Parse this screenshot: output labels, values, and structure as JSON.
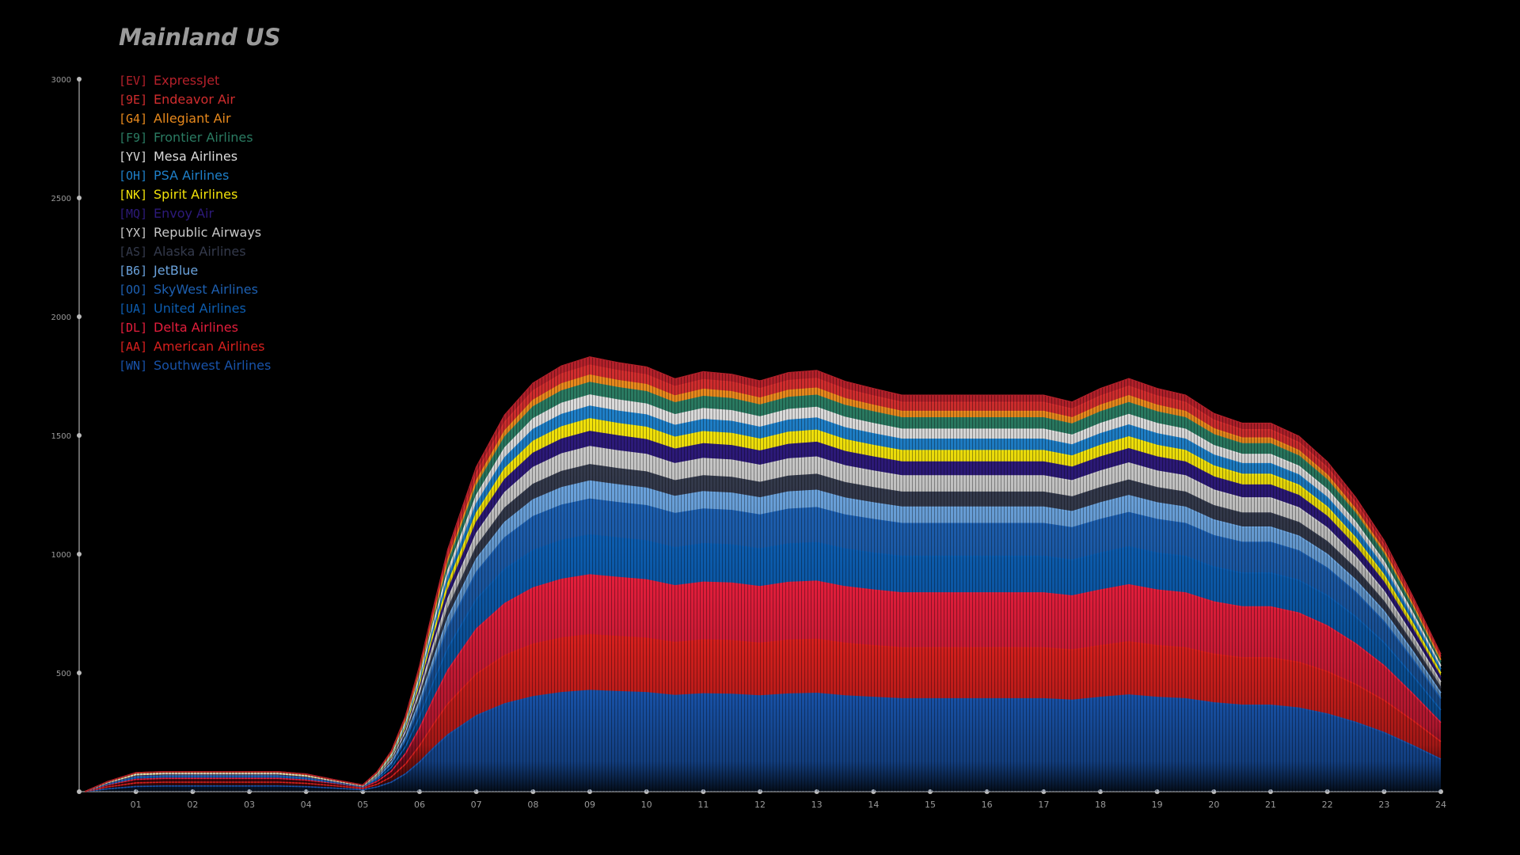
{
  "chart_data": {
    "type": "area",
    "title": "Mainland US",
    "xlabel": "",
    "ylabel": "",
    "xlim": [
      0,
      24
    ],
    "ylim": [
      0,
      3000
    ],
    "x_ticks": [
      "01",
      "02",
      "03",
      "04",
      "05",
      "06",
      "07",
      "08",
      "09",
      "10",
      "11",
      "12",
      "13",
      "14",
      "15",
      "16",
      "17",
      "18",
      "19",
      "20",
      "21",
      "22",
      "23",
      "24"
    ],
    "y_ticks": [
      "3000",
      "2500",
      "2000",
      "1500",
      "1000",
      "500"
    ],
    "x": [
      0.1,
      0.5,
      1,
      1.5,
      2,
      2.5,
      3,
      3.5,
      4,
      4.5,
      5,
      5.25,
      5.5,
      5.75,
      6,
      6.25,
      6.5,
      6.75,
      7,
      7.5,
      8,
      8.5,
      9,
      9.5,
      10,
      10.5,
      11,
      11.5,
      12,
      12.5,
      13,
      13.5,
      14,
      14.5,
      15,
      15.5,
      16,
      16.5,
      17,
      17.5,
      18,
      18.5,
      19,
      19.5,
      20,
      20.5,
      21,
      21.5,
      22,
      22.5,
      23,
      23.5,
      24
    ],
    "legend_position": "top-left",
    "series": [
      {
        "name": "ExpressJet",
        "code": "[EV]",
        "color": "#b4202a",
        "values": [
          0,
          0,
          0,
          0,
          0,
          0,
          0,
          0,
          0,
          0,
          0,
          1,
          2,
          4,
          8,
          13,
          18,
          22,
          26,
          30,
          32,
          33,
          34,
          33,
          33,
          32,
          33,
          32,
          32,
          33,
          33,
          32,
          31,
          30,
          30,
          30,
          30,
          30,
          30,
          29,
          31,
          32,
          31,
          30,
          28,
          27,
          27,
          26,
          24,
          21,
          18,
          14,
          10
        ]
      },
      {
        "name": "Endeavor Air",
        "code": "[9E]",
        "color": "#d12d2e",
        "values": [
          0,
          1,
          2,
          2,
          2,
          2,
          2,
          2,
          2,
          1,
          1,
          2,
          4,
          7,
          12,
          18,
          24,
          28,
          32,
          37,
          40,
          42,
          42,
          42,
          41,
          40,
          41,
          41,
          40,
          41,
          41,
          40,
          39,
          38,
          38,
          38,
          38,
          38,
          38,
          37,
          39,
          40,
          39,
          38,
          36,
          35,
          35,
          34,
          31,
          28,
          24,
          19,
          14
        ]
      },
      {
        "name": "Allegiant Air",
        "code": "[G4]",
        "color": "#e8891c",
        "values": [
          0,
          0,
          0,
          0,
          0,
          0,
          0,
          0,
          0,
          0,
          0,
          1,
          2,
          4,
          7,
          11,
          16,
          19,
          22,
          26,
          28,
          30,
          31,
          30,
          30,
          29,
          30,
          29,
          29,
          30,
          30,
          29,
          28,
          27,
          27,
          27,
          27,
          27,
          27,
          26,
          28,
          29,
          28,
          27,
          25,
          24,
          24,
          23,
          21,
          18,
          15,
          12,
          8
        ]
      },
      {
        "name": "Frontier Airlines",
        "code": "[F9]",
        "color": "#2a7b62",
        "values": [
          0,
          2,
          5,
          5,
          5,
          5,
          5,
          5,
          4,
          3,
          2,
          3,
          6,
          10,
          16,
          23,
          30,
          35,
          40,
          46,
          50,
          52,
          53,
          52,
          52,
          50,
          51,
          51,
          50,
          51,
          51,
          50,
          49,
          48,
          48,
          48,
          48,
          48,
          48,
          47,
          49,
          50,
          49,
          48,
          46,
          45,
          45,
          43,
          40,
          36,
          31,
          24,
          17
        ]
      },
      {
        "name": "Mesa Airlines",
        "code": "[YV]",
        "color": "#dcdcdc",
        "values": [
          0,
          0,
          0,
          0,
          0,
          0,
          0,
          0,
          0,
          0,
          0,
          2,
          4,
          8,
          13,
          20,
          26,
          31,
          35,
          41,
          45,
          47,
          47,
          47,
          46,
          45,
          46,
          45,
          44,
          45,
          45,
          44,
          43,
          42,
          42,
          42,
          42,
          42,
          42,
          41,
          43,
          44,
          43,
          42,
          40,
          39,
          39,
          37,
          34,
          31,
          26,
          20,
          14
        ]
      },
      {
        "name": "PSA Airlines",
        "code": "[OH]",
        "color": "#1e7fc8",
        "values": [
          0,
          1,
          2,
          2,
          2,
          2,
          2,
          2,
          2,
          1,
          1,
          2,
          5,
          9,
          15,
          22,
          29,
          34,
          39,
          46,
          50,
          52,
          53,
          52,
          52,
          50,
          51,
          51,
          50,
          51,
          51,
          50,
          49,
          48,
          48,
          48,
          48,
          48,
          48,
          47,
          49,
          50,
          49,
          48,
          46,
          45,
          45,
          43,
          40,
          36,
          31,
          24,
          17
        ]
      },
      {
        "name": "Spirit Airlines",
        "code": "[NK]",
        "color": "#f2e20a",
        "values": [
          0,
          2,
          3,
          3,
          3,
          3,
          3,
          3,
          3,
          2,
          1,
          2,
          5,
          9,
          15,
          22,
          29,
          34,
          39,
          46,
          50,
          52,
          53,
          52,
          52,
          50,
          51,
          51,
          50,
          51,
          51,
          50,
          49,
          48,
          48,
          48,
          48,
          48,
          48,
          47,
          49,
          50,
          49,
          48,
          46,
          45,
          45,
          43,
          40,
          36,
          31,
          24,
          17
        ]
      },
      {
        "name": "Envoy Air",
        "code": "[MQ]",
        "color": "#2d1a7a",
        "values": [
          0,
          0,
          0,
          0,
          0,
          0,
          0,
          0,
          0,
          0,
          0,
          3,
          6,
          11,
          18,
          27,
          35,
          41,
          47,
          55,
          60,
          62,
          64,
          63,
          62,
          61,
          62,
          61,
          60,
          61,
          62,
          60,
          59,
          58,
          58,
          58,
          58,
          58,
          58,
          57,
          59,
          60,
          59,
          58,
          55,
          54,
          54,
          52,
          48,
          43,
          37,
          29,
          20
        ]
      },
      {
        "name": "Republic Airways",
        "code": "[YX]",
        "color": "#c8c8c8",
        "values": [
          0,
          0,
          0,
          0,
          0,
          0,
          0,
          0,
          0,
          0,
          0,
          3,
          7,
          13,
          22,
          32,
          42,
          49,
          56,
          65,
          71,
          74,
          76,
          75,
          74,
          72,
          73,
          73,
          72,
          73,
          73,
          71,
          70,
          69,
          69,
          69,
          69,
          69,
          69,
          68,
          70,
          72,
          70,
          69,
          66,
          64,
          64,
          62,
          58,
          51,
          44,
          34,
          24
        ]
      },
      {
        "name": "Alaska Airlines",
        "code": "[AS]",
        "color": "#343a4c",
        "values": [
          0,
          0,
          0,
          0,
          0,
          0,
          0,
          0,
          0,
          0,
          0,
          3,
          6,
          12,
          20,
          29,
          38,
          44,
          51,
          60,
          65,
          68,
          69,
          68,
          68,
          66,
          67,
          66,
          65,
          66,
          67,
          65,
          64,
          63,
          63,
          63,
          63,
          63,
          63,
          62,
          64,
          65,
          64,
          63,
          60,
          59,
          59,
          57,
          53,
          47,
          40,
          31,
          22
        ]
      },
      {
        "name": "JetBlue",
        "code": "[B6]",
        "color": "#6aa2dc",
        "values": [
          0,
          3,
          6,
          6,
          6,
          6,
          6,
          6,
          5,
          3,
          2,
          3,
          7,
          13,
          22,
          32,
          42,
          49,
          56,
          65,
          71,
          74,
          76,
          75,
          74,
          72,
          73,
          73,
          72,
          73,
          73,
          71,
          70,
          69,
          69,
          69,
          69,
          69,
          69,
          68,
          70,
          72,
          70,
          69,
          66,
          64,
          64,
          62,
          58,
          51,
          44,
          34,
          24
        ]
      },
      {
        "name": "SkyWest Airlines",
        "code": "[OO]",
        "color": "#1d5fb0",
        "values": [
          0,
          2,
          4,
          4,
          4,
          4,
          4,
          4,
          4,
          2,
          1,
          7,
          14,
          27,
          44,
          65,
          85,
          99,
          113,
          131,
          142,
          148,
          151,
          149,
          148,
          144,
          146,
          145,
          143,
          146,
          147,
          143,
          141,
          138,
          138,
          138,
          138,
          138,
          138,
          136,
          141,
          144,
          141,
          138,
          132,
          129,
          129,
          124,
          115,
          103,
          88,
          69,
          48
        ]
      },
      {
        "name": "United Airlines",
        "code": "[UA]",
        "color": "#0d5db0",
        "values": [
          0,
          3,
          6,
          6,
          6,
          6,
          6,
          6,
          5,
          3,
          2,
          8,
          16,
          29,
          49,
          72,
          94,
          110,
          126,
          146,
          158,
          164,
          168,
          166,
          164,
          160,
          162,
          161,
          159,
          162,
          163,
          159,
          156,
          154,
          154,
          154,
          154,
          154,
          154,
          151,
          156,
          160,
          156,
          154,
          147,
          143,
          143,
          138,
          128,
          114,
          97,
          76,
          53
        ]
      },
      {
        "name": "Delta Airlines",
        "code": "[DL]",
        "color": "#e41e3c",
        "values": [
          0,
          8,
          15,
          16,
          16,
          16,
          16,
          16,
          14,
          10,
          5,
          12,
          24,
          44,
          74,
          108,
          141,
          165,
          189,
          218,
          237,
          247,
          252,
          249,
          246,
          239,
          243,
          242,
          238,
          243,
          244,
          238,
          234,
          231,
          231,
          231,
          231,
          231,
          231,
          227,
          234,
          240,
          234,
          231,
          220,
          214,
          214,
          207,
          192,
          171,
          146,
          113,
          80
        ]
      },
      {
        "name": "American Airlines",
        "code": "[AA]",
        "color": "#d8201e",
        "values": [
          0,
          8,
          15,
          16,
          16,
          16,
          16,
          16,
          14,
          10,
          5,
          11,
          22,
          41,
          69,
          101,
          131,
          154,
          176,
          204,
          221,
          230,
          235,
          232,
          229,
          223,
          227,
          226,
          222,
          227,
          228,
          222,
          218,
          215,
          215,
          215,
          215,
          215,
          215,
          212,
          218,
          224,
          218,
          215,
          205,
          200,
          200,
          193,
          179,
          160,
          136,
          106,
          74
        ]
      },
      {
        "name": "Southwest Airlines",
        "code": "[WN]",
        "color": "#1852a8",
        "values": [
          0,
          12,
          22,
          24,
          24,
          24,
          24,
          24,
          21,
          15,
          8,
          20,
          40,
          75,
          125,
          185,
          240,
          280,
          320,
          370,
          400,
          417,
          426,
          421,
          417,
          405,
          412,
          410,
          403,
          411,
          414,
          403,
          397,
          391,
          391,
          391,
          391,
          391,
          391,
          385,
          397,
          407,
          397,
          391,
          374,
          364,
          364,
          352,
          327,
          292,
          249,
          195,
          137
        ]
      }
    ]
  }
}
